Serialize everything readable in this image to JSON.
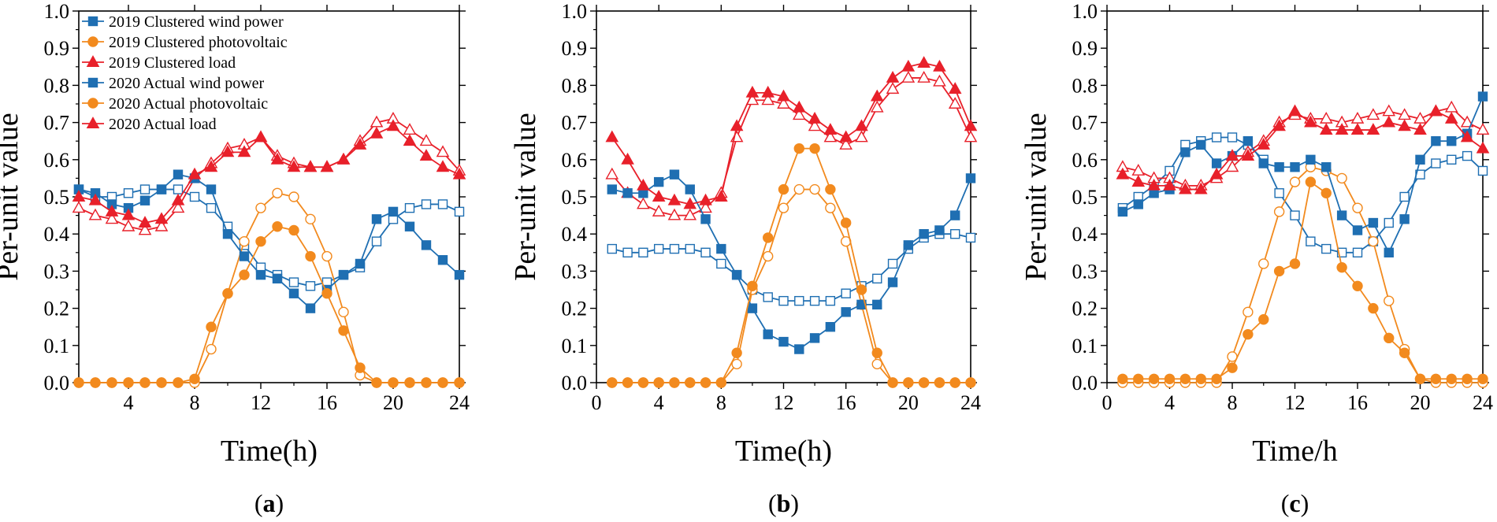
{
  "colors": {
    "wind": "#1f6fb2",
    "pv": "#f28a1e",
    "load": "#e8202a",
    "axis": "#000000"
  },
  "chart_data": [
    {
      "type": "line",
      "panel": "(a)",
      "panel_letter": "a",
      "xlabel": "Time(h)",
      "ylabel": "Per-unit value",
      "xlim": [
        1,
        24
      ],
      "ylim": [
        0.0,
        1.0
      ],
      "xticks": [
        4,
        8,
        12,
        16,
        20,
        24
      ],
      "xtick_labels": [
        "4",
        "8",
        "12",
        "16",
        "20",
        "24"
      ],
      "yticks": [
        0.0,
        0.1,
        0.2,
        0.3,
        0.4,
        0.5,
        0.6,
        0.7,
        0.8,
        0.9,
        1.0
      ],
      "ytick_labels": [
        "0.0",
        "0.1",
        "0.2",
        "0.3",
        "0.4",
        "0.5",
        "0.6",
        "0.7",
        "0.8",
        "0.9",
        "1.0"
      ],
      "legend": "top-left",
      "x": [
        1,
        2,
        3,
        4,
        5,
        6,
        7,
        8,
        9,
        10,
        11,
        12,
        13,
        14,
        15,
        16,
        17,
        18,
        19,
        20,
        21,
        22,
        23,
        24
      ],
      "series": [
        {
          "name": "2019 Clustered wind power",
          "kind": "wind",
          "marker": "square",
          "filled": true,
          "values": [
            0.52,
            0.51,
            0.48,
            0.47,
            0.49,
            0.52,
            0.56,
            0.55,
            0.52,
            0.4,
            0.34,
            0.29,
            0.28,
            0.24,
            0.2,
            0.25,
            0.29,
            0.32,
            0.44,
            0.46,
            0.42,
            0.37,
            0.33,
            0.29
          ]
        },
        {
          "name": "2019 Clustered photovoltaic",
          "kind": "pv",
          "marker": "circle",
          "filled": true,
          "values": [
            0,
            0,
            0,
            0,
            0,
            0,
            0,
            0.01,
            0.15,
            0.24,
            0.29,
            0.38,
            0.42,
            0.41,
            0.34,
            0.24,
            0.14,
            0.04,
            0,
            0,
            0,
            0,
            0,
            0
          ]
        },
        {
          "name": "2019 Clustered load",
          "kind": "load",
          "marker": "triangle",
          "filled": true,
          "values": [
            0.5,
            0.49,
            0.46,
            0.45,
            0.43,
            0.44,
            0.49,
            0.56,
            0.58,
            0.62,
            0.62,
            0.66,
            0.6,
            0.58,
            0.58,
            0.58,
            0.6,
            0.64,
            0.67,
            0.69,
            0.65,
            0.61,
            0.58,
            0.56
          ]
        },
        {
          "name": "2020 Actual wind power",
          "kind": "wind",
          "marker": "square",
          "filled": false,
          "values": [
            0.52,
            0.5,
            0.5,
            0.51,
            0.52,
            0.52,
            0.52,
            0.5,
            0.47,
            0.42,
            0.37,
            0.31,
            0.29,
            0.27,
            0.26,
            0.27,
            0.29,
            0.31,
            0.38,
            0.44,
            0.47,
            0.48,
            0.48,
            0.46
          ]
        },
        {
          "name": "2020 Actual photovoltaic",
          "kind": "pv",
          "marker": "circle",
          "filled": false,
          "values": [
            0,
            0,
            0,
            0,
            0,
            0,
            0,
            0,
            0.09,
            0.24,
            0.38,
            0.47,
            0.51,
            0.5,
            0.44,
            0.34,
            0.19,
            0.02,
            0,
            0,
            0,
            0,
            0,
            0
          ]
        },
        {
          "name": "2020 Actual load",
          "kind": "load",
          "marker": "triangle",
          "filled": false,
          "values": [
            0.47,
            0.45,
            0.44,
            0.42,
            0.41,
            0.42,
            0.47,
            0.55,
            0.59,
            0.63,
            0.64,
            0.66,
            0.61,
            0.59,
            0.58,
            0.58,
            0.6,
            0.65,
            0.7,
            0.71,
            0.68,
            0.65,
            0.62,
            0.57
          ]
        }
      ]
    },
    {
      "type": "line",
      "panel": "(b)",
      "panel_letter": "b",
      "xlabel": "Time(h)",
      "ylabel": "Per-unit value",
      "xlim": [
        0,
        24
      ],
      "ylim": [
        0.0,
        1.0
      ],
      "xticks": [
        0,
        4,
        8,
        12,
        16,
        20,
        24
      ],
      "xtick_labels": [
        "0",
        "4",
        "8",
        "12",
        "16",
        "20",
        "24"
      ],
      "yticks": [
        0.0,
        0.1,
        0.2,
        0.3,
        0.4,
        0.5,
        0.6,
        0.7,
        0.8,
        0.9,
        1.0
      ],
      "ytick_labels": [
        "0.0",
        "0.1",
        "0.2",
        "0.3",
        "0.4",
        "0.5",
        "0.6",
        "0.7",
        "0.8",
        "0.9",
        "1.0"
      ],
      "x": [
        1,
        2,
        3,
        4,
        5,
        6,
        7,
        8,
        9,
        10,
        11,
        12,
        13,
        14,
        15,
        16,
        17,
        18,
        19,
        20,
        21,
        22,
        23,
        24
      ],
      "series": [
        {
          "name": "2019 Clustered wind power",
          "kind": "wind",
          "marker": "square",
          "filled": true,
          "values": [
            0.52,
            0.51,
            0.51,
            0.54,
            0.56,
            0.52,
            0.44,
            0.36,
            0.29,
            0.2,
            0.13,
            0.11,
            0.09,
            0.12,
            0.15,
            0.19,
            0.21,
            0.21,
            0.27,
            0.37,
            0.4,
            0.41,
            0.45,
            0.55
          ]
        },
        {
          "name": "2019 Clustered photovoltaic",
          "kind": "pv",
          "marker": "circle",
          "filled": true,
          "values": [
            0,
            0,
            0,
            0,
            0,
            0,
            0,
            0,
            0.08,
            0.26,
            0.39,
            0.52,
            0.63,
            0.63,
            0.52,
            0.43,
            0.25,
            0.08,
            0,
            0,
            0,
            0,
            0,
            0
          ]
        },
        {
          "name": "2019 Clustered load",
          "kind": "load",
          "marker": "triangle",
          "filled": true,
          "values": [
            0.66,
            0.6,
            0.53,
            0.5,
            0.49,
            0.48,
            0.49,
            0.5,
            0.69,
            0.78,
            0.78,
            0.77,
            0.74,
            0.71,
            0.68,
            0.66,
            0.69,
            0.77,
            0.82,
            0.85,
            0.86,
            0.85,
            0.79,
            0.69
          ]
        },
        {
          "name": "2020 Actual wind power",
          "kind": "wind",
          "marker": "square",
          "filled": false,
          "values": [
            0.36,
            0.35,
            0.35,
            0.36,
            0.36,
            0.36,
            0.35,
            0.32,
            0.29,
            0.25,
            0.23,
            0.22,
            0.22,
            0.22,
            0.22,
            0.24,
            0.26,
            0.28,
            0.32,
            0.36,
            0.39,
            0.4,
            0.4,
            0.39
          ]
        },
        {
          "name": "2020 Actual photovoltaic",
          "kind": "pv",
          "marker": "circle",
          "filled": false,
          "values": [
            0,
            0,
            0,
            0,
            0,
            0,
            0,
            0,
            0.05,
            0.25,
            0.34,
            0.47,
            0.52,
            0.52,
            0.47,
            0.38,
            0.21,
            0.05,
            0,
            0,
            0,
            0,
            0,
            0
          ]
        },
        {
          "name": "2020 Actual load",
          "kind": "load",
          "marker": "triangle",
          "filled": false,
          "values": [
            0.56,
            0.51,
            0.48,
            0.46,
            0.45,
            0.45,
            0.47,
            0.51,
            0.66,
            0.76,
            0.76,
            0.75,
            0.72,
            0.69,
            0.66,
            0.64,
            0.66,
            0.74,
            0.79,
            0.82,
            0.82,
            0.81,
            0.75,
            0.66
          ]
        }
      ]
    },
    {
      "type": "line",
      "panel": "(c)",
      "panel_letter": "c",
      "xlabel": "Time/h",
      "ylabel": "Per-unit value",
      "xlim": [
        0,
        24
      ],
      "ylim": [
        0.0,
        1.0
      ],
      "xticks": [
        0,
        4,
        8,
        12,
        16,
        20,
        24
      ],
      "xtick_labels": [
        "0",
        "4",
        "8",
        "12",
        "16",
        "20",
        "24"
      ],
      "yticks": [
        0.0,
        0.1,
        0.2,
        0.3,
        0.4,
        0.5,
        0.6,
        0.7,
        0.8,
        0.9,
        1.0
      ],
      "ytick_labels": [
        "0.0",
        "0.1",
        "0.2",
        "0.3",
        "0.4",
        "0.5",
        "0.6",
        "0.7",
        "0.8",
        "0.9",
        "1.0"
      ],
      "x": [
        1,
        2,
        3,
        4,
        5,
        6,
        7,
        8,
        9,
        10,
        11,
        12,
        13,
        14,
        15,
        16,
        17,
        18,
        19,
        20,
        21,
        22,
        23,
        24
      ],
      "series": [
        {
          "name": "2019 Clustered wind power",
          "kind": "wind",
          "marker": "square",
          "filled": true,
          "values": [
            0.46,
            0.48,
            0.51,
            0.52,
            0.62,
            0.64,
            0.59,
            0.61,
            0.65,
            0.59,
            0.58,
            0.58,
            0.6,
            0.58,
            0.45,
            0.41,
            0.43,
            0.35,
            0.44,
            0.6,
            0.65,
            0.65,
            0.67,
            0.77
          ]
        },
        {
          "name": "2019 Clustered photovoltaic",
          "kind": "pv",
          "marker": "circle",
          "filled": true,
          "values": [
            0.01,
            0.01,
            0.01,
            0.01,
            0.01,
            0.01,
            0.01,
            0.04,
            0.13,
            0.17,
            0.3,
            0.32,
            0.54,
            0.51,
            0.31,
            0.26,
            0.2,
            0.12,
            0.08,
            0.01,
            0.01,
            0.01,
            0.01,
            0.01
          ]
        },
        {
          "name": "2019 Clustered load",
          "kind": "load",
          "marker": "triangle",
          "filled": true,
          "values": [
            0.56,
            0.54,
            0.53,
            0.53,
            0.52,
            0.52,
            0.56,
            0.61,
            0.61,
            0.64,
            0.69,
            0.73,
            0.7,
            0.68,
            0.68,
            0.68,
            0.68,
            0.7,
            0.69,
            0.68,
            0.73,
            0.71,
            0.66,
            0.63
          ]
        },
        {
          "name": "2020 Actual wind power",
          "kind": "wind",
          "marker": "square",
          "filled": false,
          "values": [
            0.47,
            0.5,
            0.53,
            0.57,
            0.64,
            0.65,
            0.66,
            0.66,
            0.64,
            0.6,
            0.51,
            0.45,
            0.38,
            0.36,
            0.35,
            0.35,
            0.38,
            0.43,
            0.5,
            0.56,
            0.59,
            0.6,
            0.61,
            0.57
          ]
        },
        {
          "name": "2020 Actual photovoltaic",
          "kind": "pv",
          "marker": "circle",
          "filled": false,
          "values": [
            0,
            0,
            0,
            0,
            0,
            0,
            0,
            0.07,
            0.19,
            0.32,
            0.46,
            0.54,
            0.58,
            0.57,
            0.55,
            0.47,
            0.38,
            0.22,
            0.09,
            0.01,
            0,
            0,
            0,
            0
          ]
        },
        {
          "name": "2020 Actual load",
          "kind": "load",
          "marker": "triangle",
          "filled": false,
          "values": [
            0.58,
            0.57,
            0.55,
            0.55,
            0.53,
            0.53,
            0.55,
            0.58,
            0.62,
            0.65,
            0.7,
            0.72,
            0.71,
            0.71,
            0.7,
            0.71,
            0.72,
            0.73,
            0.72,
            0.71,
            0.73,
            0.74,
            0.7,
            0.68
          ]
        }
      ]
    }
  ]
}
